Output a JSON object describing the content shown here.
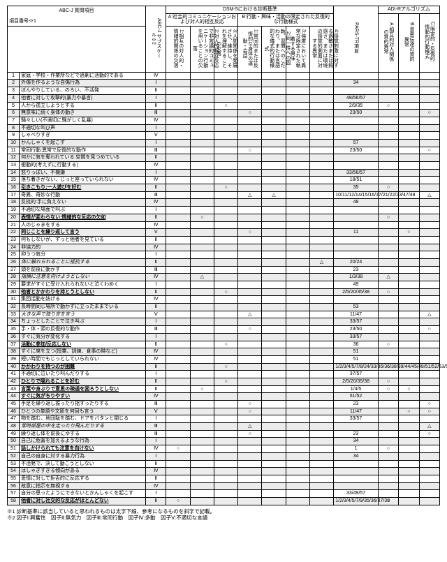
{
  "title": "ABC-J 質問項目",
  "noteRef": "項目番号※1",
  "groups": {
    "abc": "ABC-J サブスケール※2",
    "dsm": "DSM-5における診断基準",
    "dsmA": "A:社会的コミュニケーションおよび対人的相互反応",
    "dsmB": "B:行動・興味・活動の限定された反復的な行動様式",
    "pars": "PARS-TR項目",
    "adir": "ADI-Rアルゴリズム"
  },
  "dsmACols": [
    "1:相互の対人的・情緒的関係の欠落",
    "2:対人的相互反応で非言語的コミュニケーション行動を用いることの欠落",
    "3:人間関係を発展させ、維持し、それを理解することの欠落"
  ],
  "dsmBCols": [
    "1:常同的または反復的な身体の運動・会話",
    "2:同一性への固執、習慣へのこだわり、または言語的な儀式的行動様式",
    "3:強度において異常な限定された執着する興味",
    "4:感覚刺激に対する過敏さまたは鈍感さ、または環境の感覚的側面に対する異常"
  ],
  "adirCols": [
    "A:相互的対人関係の質的異常",
    "B:意思伝達の質的異常",
    "C:限定的・反復的:情動的行動様式"
  ],
  "rows": [
    {
      "n": "1",
      "t": "家庭・学校・作業所などで過剰に活動的である",
      "s": "Ⅳ"
    },
    {
      "n": "2",
      "t": "外傷を作るような自傷行為",
      "s": "Ⅰ",
      "pars": "34"
    },
    {
      "n": "3",
      "t": "ぼんやりしている、のろい、不活発",
      "s": "Ⅱ"
    },
    {
      "n": "4",
      "t": "他者に対して攻撃的(暴力や暴言)",
      "s": "Ⅰ",
      "pars": "48/56/57"
    },
    {
      "n": "5",
      "t": "人から孤立しようとする",
      "s": "Ⅱ",
      "a": {
        "A3": "○"
      },
      "pars": "2/9/35",
      "adir": {
        "A": "○"
      }
    },
    {
      "n": "6",
      "t": "無意味に続く身体の動き",
      "s": "Ⅲ",
      "a": {
        "B1": "○"
      },
      "pars": "23/50",
      "adir": {
        "C": "○"
      }
    },
    {
      "n": "7",
      "t": "騒々しい(不適切に騒がしく乱暴)",
      "s": "Ⅳ"
    },
    {
      "n": "8",
      "t": "不適切な叫び声",
      "s": "Ⅰ"
    },
    {
      "n": "9",
      "t": "しゃべりすぎ",
      "s": "Ⅴ"
    },
    {
      "n": "10",
      "t": "かんしゃくを起こす",
      "s": "Ⅰ",
      "pars": "57"
    },
    {
      "n": "11",
      "t": "常同行動:異常で反復的な動作",
      "s": "Ⅲ",
      "a": {
        "B1": "○"
      },
      "pars": "23/50",
      "adir": {
        "C": "○"
      }
    },
    {
      "n": "12",
      "t": "何かに気を奪われている:空間を見つめている",
      "s": "Ⅱ"
    },
    {
      "n": "13",
      "t": "衝動的(考えずに行動する)",
      "s": "Ⅳ"
    },
    {
      "n": "14",
      "t": "怒りっぽい、不機嫌",
      "s": "Ⅰ",
      "pars": "33/56/57"
    },
    {
      "n": "15",
      "t": "落ち着きがない、じっと座っていられない",
      "s": "Ⅳ",
      "pars": "18/51"
    },
    {
      "n": "16",
      "t": "引きこもり;一人遊びを好む",
      "s": "Ⅱ",
      "a": {
        "A3": "○"
      },
      "pars": "35",
      "adir": {
        "A": "○"
      },
      "u": 1
    },
    {
      "n": "17",
      "t": "奇異、奇妙な行動",
      "s": "Ⅲ",
      "a": {
        "B1": "△",
        "B2": "△"
      },
      "pars": "10/11/12/14/15/16/17/21/22/23/47/48",
      "adir": {
        "C": "△"
      }
    },
    {
      "n": "18",
      "t": "反抗的:手に負えない",
      "s": "Ⅳ",
      "pars": "48"
    },
    {
      "n": "19",
      "t": "不適切な場面で叫ぶ",
      "s": "Ⅰ"
    },
    {
      "n": "20",
      "t": "表情が変わらない;情緒的な反応の欠如",
      "s": "Ⅱ",
      "a": {
        "A2": "○"
      },
      "adir": {
        "A": "○"
      },
      "u": 1
    },
    {
      "n": "21",
      "t": "人のじゃまをする",
      "s": "Ⅳ"
    },
    {
      "n": "22",
      "t": "同じことを繰り返して言う",
      "s": "Ⅴ",
      "a": {
        "B1": "○"
      },
      "pars": "11",
      "adir": {
        "B": "○"
      },
      "u": 1
    },
    {
      "n": "23",
      "t": "何もしないが、ずっと他者を見ている",
      "s": "Ⅱ"
    },
    {
      "n": "24",
      "t": "非協力的",
      "s": "Ⅳ"
    },
    {
      "n": "25",
      "t": "抑うつ気分",
      "s": "Ⅰ"
    },
    {
      "n": "26",
      "t": "体に触れられることに抵抗する",
      "s": "Ⅱ",
      "a": {
        "B4": "△"
      },
      "pars": "20/24",
      "i": 1
    },
    {
      "n": "27",
      "t": "頭を前後に動かす",
      "s": "Ⅲ",
      "pars": "23"
    },
    {
      "n": "28",
      "t": "指摘に注意を向けようとしない",
      "s": "Ⅳ",
      "a": {
        "A2": "△"
      },
      "pars": "1/3/38",
      "adir": {
        "A": "△"
      },
      "i": 1
    },
    {
      "n": "29",
      "t": "要求がすぐに受け入れられないと泣くわめく",
      "s": "Ⅰ",
      "pars": "49"
    },
    {
      "n": "30",
      "t": "他者とかかわりを持とうとしない",
      "s": "Ⅱ",
      "a": {
        "A3": "○"
      },
      "pars": "2/5/20/35/38",
      "adir": {
        "A": "○"
      },
      "u": 1
    },
    {
      "n": "31",
      "t": "集団活動を妨げる",
      "s": "Ⅳ"
    },
    {
      "n": "32",
      "t": "長時間同じ場所で動かずに立ったままでいる",
      "s": "Ⅱ",
      "pars": "53"
    },
    {
      "n": "33",
      "t": "大きな声で独り言を言う",
      "s": "Ⅴ",
      "a": {
        "B1": "△"
      },
      "pars": "11/47",
      "adir": {
        "C": "△"
      },
      "i": 1
    },
    {
      "n": "34",
      "t": "ちょっとしたことで泣き叫ぶ",
      "s": "Ⅰ",
      "pars": "33/57"
    },
    {
      "n": "35",
      "t": "手・体・頭の反復的な動作",
      "s": "Ⅲ",
      "a": {
        "B1": "○"
      },
      "pars": "23/50",
      "adir": {
        "C": "○"
      }
    },
    {
      "n": "36",
      "t": "すぐに気分が変化する",
      "s": "Ⅰ",
      "pars": "33/57"
    },
    {
      "n": "37",
      "t": "活動に参加/反応しない",
      "s": "Ⅱ",
      "a": {
        "A3": "○"
      },
      "pars": "36",
      "adir": {
        "A": "○"
      },
      "u": 1
    },
    {
      "n": "38",
      "t": "すぐに席を立つ(授業、訓練、食事の時など)",
      "s": "Ⅳ",
      "pars": "51"
    },
    {
      "n": "39",
      "t": "短い時間でもじっとしていられない",
      "s": "Ⅳ",
      "pars": "51"
    },
    {
      "n": "40",
      "t": "かかわりを持つのが困難",
      "s": "Ⅱ",
      "a": {
        "A3": "○"
      },
      "pars": "1/2/3/4/5/7/8/24/33/35/36/38/39/44/45/48/51/52/53/56/57",
      "adir": {
        "A": "○"
      },
      "u": 1
    },
    {
      "n": "41",
      "t": "不適切に泣いたり叫んだりする",
      "s": "Ⅰ",
      "pars": "37/57"
    },
    {
      "n": "42",
      "t": "ひとりで隠れることを好む",
      "s": "Ⅱ",
      "a": {
        "A3": "○"
      },
      "pars": "2/5/20/35/38",
      "adir": {
        "A": "○"
      },
      "u": 1
    },
    {
      "n": "43",
      "t": "言葉や身ぶりで意思の疎通を図ろうとしない",
      "s": "Ⅱ",
      "a": {
        "A2": "○"
      },
      "pars": "1/4/5",
      "adir": {
        "A": "○",
        "B": "○"
      },
      "u": 1
    },
    {
      "n": "44",
      "t": "すぐに気がちりやすい",
      "s": "Ⅳ",
      "pars": "51/52",
      "u": 1
    },
    {
      "n": "45",
      "t": "手足を繰り返し振ったり揺すったりする",
      "s": "Ⅲ",
      "a": {
        "B1": "○"
      },
      "pars": "23",
      "adir": {
        "C": "○"
      }
    },
    {
      "n": "46",
      "t": "ひとつの単語や文節を何回も言う",
      "s": "Ⅴ",
      "a": {
        "B1": "○"
      },
      "pars": "11/47",
      "adir": {
        "B": "○",
        "C": "○"
      }
    },
    {
      "n": "47",
      "t": "物を踏む、地団駄を踏む、ドアをバタンと閉じる",
      "s": "Ⅰ",
      "pars": "33/57"
    },
    {
      "n": "48",
      "t": "常時部屋の中を走ったり飛んだりする",
      "s": "Ⅲ",
      "a": {
        "B1": "△"
      },
      "adir": {
        "C": "△"
      },
      "i": 1
    },
    {
      "n": "49",
      "t": "繰り返し体を前後にゆする",
      "s": "Ⅲ",
      "a": {
        "B1": "○"
      },
      "pars": "23",
      "adir": {
        "C": "○"
      }
    },
    {
      "n": "50",
      "t": "自己に危害を加えるような行為",
      "s": "Ⅰ",
      "pars": "34"
    },
    {
      "n": "51",
      "t": "話しかけられても注意を向けない",
      "s": "Ⅳ",
      "a": {
        "A1": "○"
      },
      "pars": "1",
      "adir": {
        "A": "○"
      },
      "u": 1
    },
    {
      "n": "52",
      "t": "自己の自身に対する暴力行為",
      "s": "Ⅰ",
      "pars": "34"
    },
    {
      "n": "53",
      "t": "不活発で、決して動こうとしない",
      "s": "Ⅱ"
    },
    {
      "n": "54",
      "t": "はしゃぎすぎる傾向がある",
      "s": "Ⅳ"
    },
    {
      "n": "55",
      "t": "愛情に対して拒否的に反応する",
      "s": "Ⅱ"
    },
    {
      "n": "56",
      "t": "故意に指示を無視する",
      "s": "Ⅳ"
    },
    {
      "n": "57",
      "t": "自分の思ったようにできないとかんしゃくを起こす",
      "s": "Ⅰ",
      "pars": "33/49/57"
    },
    {
      "n": "58",
      "t": "他者に対し社交的な反応がほとんどない",
      "s": "Ⅱ",
      "a": {
        "A1": "○"
      },
      "pars": "1/2/3/4/5/7/9/35/36/37/38",
      "adir": {
        "A": "○"
      },
      "u": 1
    }
  ],
  "footnotes": [
    "※1 診断基準に該当していると思われるものは太字下線、参考になるものを斜字で記載。",
    "※2 因子Ⅰ:興奮性　因子Ⅱ:無気力　因子Ⅲ:常同行動　因子Ⅳ:多動　因子Ⅴ:不適切な言語"
  ]
}
